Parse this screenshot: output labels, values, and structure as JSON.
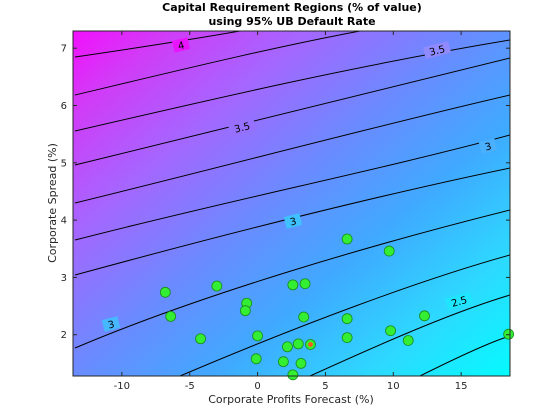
{
  "chart_data": {
    "type": "scatter",
    "title": [
      "Capital Requirement Regions (% of value)",
      "using 95% UB Default Rate"
    ],
    "xlabel": "Corporate Profits Forecast (%)",
    "ylabel": "Corporate Spread (%)",
    "xlim": [
      -13.6,
      18.6
    ],
    "ylim": [
      1.28,
      7.3
    ],
    "xticks": [
      -10,
      -5,
      0,
      5,
      10,
      15
    ],
    "yticks": [
      2,
      3,
      4,
      5,
      6,
      7
    ],
    "grid": false,
    "colormap": [
      "#00ffff",
      "#ff00ff"
    ],
    "contour_levels": [
      {
        "label": "4",
        "text": "4"
      },
      {
        "label": "3.5",
        "text": "3.5"
      },
      {
        "label": "3",
        "text": "3"
      },
      {
        "label": "2.5",
        "text": "2.5"
      }
    ],
    "points": [
      {
        "x": -6.8,
        "y": 2.74
      },
      {
        "x": -6.4,
        "y": 2.32
      },
      {
        "x": -3.0,
        "y": 2.85
      },
      {
        "x": -4.2,
        "y": 1.93
      },
      {
        "x": -0.8,
        "y": 2.55
      },
      {
        "x": -0.9,
        "y": 2.42
      },
      {
        "x": 0.0,
        "y": 1.98
      },
      {
        "x": -0.1,
        "y": 1.58
      },
      {
        "x": 1.9,
        "y": 1.53
      },
      {
        "x": 2.2,
        "y": 1.79
      },
      {
        "x": 2.6,
        "y": 2.87
      },
      {
        "x": 2.6,
        "y": 1.3
      },
      {
        "x": 3.0,
        "y": 1.84
      },
      {
        "x": 3.2,
        "y": 1.5
      },
      {
        "x": 3.5,
        "y": 2.89
      },
      {
        "x": 3.4,
        "y": 2.31
      },
      {
        "x": 6.6,
        "y": 3.67
      },
      {
        "x": 6.6,
        "y": 2.28
      },
      {
        "x": 6.6,
        "y": 1.95
      },
      {
        "x": 9.7,
        "y": 3.46
      },
      {
        "x": 9.8,
        "y": 2.07
      },
      {
        "x": 11.1,
        "y": 1.9
      },
      {
        "x": 12.3,
        "y": 2.33
      },
      {
        "x": 18.5,
        "y": 2.01
      }
    ],
    "highlight_point": {
      "x": 3.9,
      "y": 1.83
    },
    "colors": {
      "marker_fill": "#33ee33",
      "marker_edge": "#1a8a1a",
      "highlight_fill": "#ff5a1e",
      "contour_line": "#000000"
    }
  }
}
